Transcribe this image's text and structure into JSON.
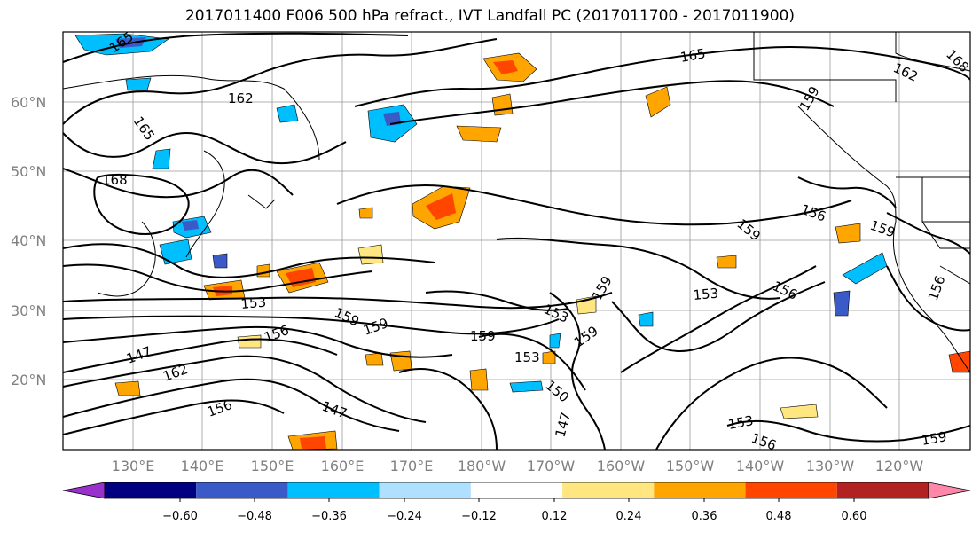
{
  "title": "2017011400 F006 500 hPa refract., IVT Landfall PC (2017011700 - 2017011900)",
  "lat_labels": [
    "60°N",
    "50°N",
    "40°N",
    "30°N",
    "20°N"
  ],
  "lon_labels": [
    "130°E",
    "140°E",
    "150°E",
    "160°E",
    "170°E",
    "180°W",
    "170°W",
    "160°W",
    "150°W",
    "140°W",
    "130°W",
    "120°W"
  ],
  "contour_labels": [
    "165",
    "162",
    "165",
    "168",
    "165",
    "162",
    "168",
    "159",
    "156",
    "159",
    "153",
    "159",
    "153",
    "156",
    "159",
    "156",
    "153",
    "147",
    "162",
    "156",
    "159",
    "147",
    "159",
    "153",
    "159",
    "150",
    "147",
    "153",
    "156",
    "159",
    "156",
    "159"
  ],
  "colorbar": {
    "ticks": [
      "−0.60",
      "−0.48",
      "−0.36",
      "−0.24",
      "−0.12",
      "0.12",
      "0.24",
      "0.36",
      "0.48",
      "0.60"
    ],
    "colors": [
      "#9932cc",
      "#000080",
      "#3a5ac8",
      "#00bfff",
      "#b0e0ff",
      "#ffffff",
      "#ffe680",
      "#ffa500",
      "#ff4500",
      "#b22222",
      "#ff88aa"
    ]
  }
}
